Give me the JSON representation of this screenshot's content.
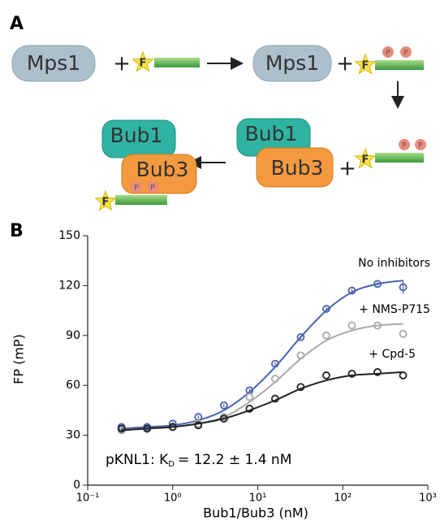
{
  "diagram": {
    "label": "A",
    "texts": [
      "Mps1",
      "+",
      "F",
      "Mps1",
      "+",
      "F",
      "P",
      "P",
      "Bub1",
      "Bub3",
      "+",
      "F",
      "P",
      "P",
      "Bub1",
      "Bub3",
      "F",
      "P",
      "P"
    ]
  },
  "chart_data": {
    "type": "scatter",
    "panel_label": "B",
    "x_label": "Bub1/Bub3 (nM)",
    "y_label": "FP (mP)",
    "annotation": [
      "pKNL1: K",
      "D",
      "= 12.2 ± 1.4 nM"
    ],
    "x": [
      0.25,
      0.5,
      1,
      2,
      4,
      8,
      16,
      32,
      64,
      128,
      256,
      512
    ],
    "x_log": true,
    "xlim": [
      0.1,
      1000
    ],
    "xticks": [
      {
        "value": 0.1,
        "label": "10⁻¹"
      },
      {
        "value": 1,
        "label": "10⁰"
      },
      {
        "value": 10,
        "label": "10¹"
      },
      {
        "value": 100,
        "label": "10²"
      },
      {
        "value": 1000,
        "label": "10³"
      }
    ],
    "ylim": [
      0,
      150
    ],
    "yticks": [
      0,
      30,
      60,
      90,
      120,
      150
    ],
    "series": [
      {
        "name": "No inhibitors",
        "color": "#4a62b0",
        "values": [
          35,
          35,
          37,
          41,
          48,
          57,
          73,
          89,
          106,
          117,
          121,
          119
        ],
        "errors": [
          1,
          1,
          1,
          1,
          1,
          1,
          1,
          1,
          1,
          1,
          1,
          4
        ],
        "fit": [
          34,
          35,
          36,
          39,
          45,
          56,
          71,
          89,
          105,
          116,
          121,
          123
        ]
      },
      {
        "name": "+ NMS-P715",
        "color": "#a9a9a9",
        "values": [
          33,
          34,
          35,
          37,
          41,
          53,
          64,
          78,
          90,
          96,
          96,
          91
        ],
        "fit": [
          33,
          34,
          35,
          37,
          41,
          50,
          62,
          76,
          87,
          93,
          96,
          97
        ]
      },
      {
        "name": "+ Cpd-5",
        "color": "#222222",
        "values": [
          34,
          34,
          35,
          36,
          40,
          46,
          52,
          59,
          66,
          67,
          68,
          66
        ],
        "fit": [
          33,
          34,
          35,
          37,
          40,
          45,
          51,
          58,
          63,
          66,
          67,
          68
        ]
      }
    ]
  }
}
